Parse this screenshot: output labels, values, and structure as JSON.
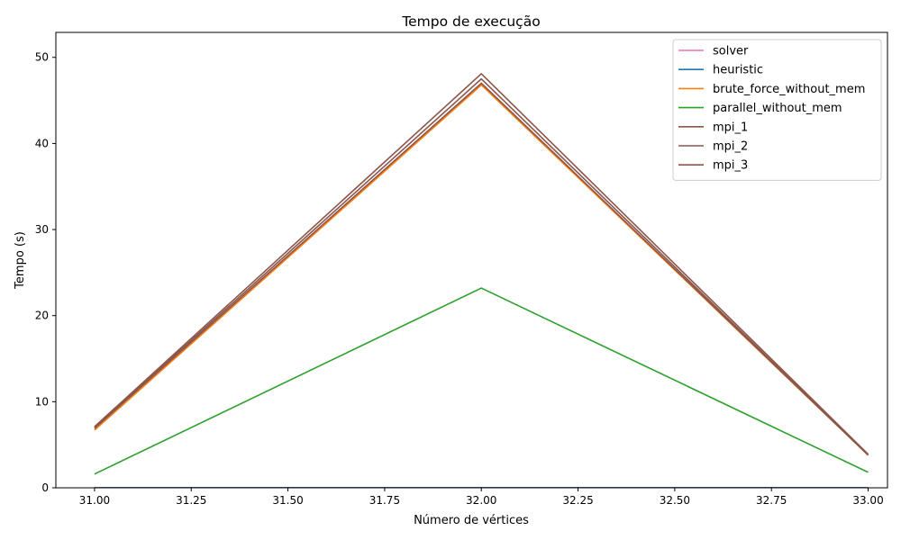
{
  "chart_data": {
    "type": "line",
    "title": "Tempo de execução",
    "xlabel": "Número de vértices",
    "ylabel": "Tempo (s)",
    "xlim": [
      30.9,
      33.05
    ],
    "ylim": [
      0,
      52.9
    ],
    "xticks": [
      31.0,
      31.25,
      31.5,
      31.75,
      32.0,
      32.25,
      32.5,
      32.75,
      33.0
    ],
    "xtick_labels": [
      "31.00",
      "31.25",
      "31.50",
      "31.75",
      "32.00",
      "32.25",
      "32.50",
      "32.75",
      "33.00"
    ],
    "yticks": [
      0,
      10,
      20,
      30,
      40,
      50
    ],
    "ytick_labels": [
      "0",
      "10",
      "20",
      "30",
      "40",
      "50"
    ],
    "grid": false,
    "legend_position": "top-right",
    "x": [
      31,
      32,
      33
    ],
    "series": [
      {
        "name": "solver",
        "color": "#e377c2",
        "values": [
          0.02,
          0.02,
          0.02
        ]
      },
      {
        "name": "heuristic",
        "color": "#1f77b4",
        "values": [
          0.01,
          0.01,
          0.01
        ]
      },
      {
        "name": "brute_force_without_mem",
        "color": "#ff7f0e",
        "values": [
          6.7,
          46.8,
          3.8
        ]
      },
      {
        "name": "parallel_without_mem",
        "color": "#2ca02c",
        "values": [
          1.6,
          23.2,
          1.8
        ]
      },
      {
        "name": "mpi_1",
        "color": "#8c564b",
        "values": [
          6.9,
          47.0,
          3.8
        ]
      },
      {
        "name": "mpi_2",
        "color": "#8c564b",
        "values": [
          7.0,
          47.5,
          3.8
        ]
      },
      {
        "name": "mpi_3",
        "color": "#8c564b",
        "values": [
          7.1,
          48.1,
          3.9
        ]
      }
    ]
  }
}
